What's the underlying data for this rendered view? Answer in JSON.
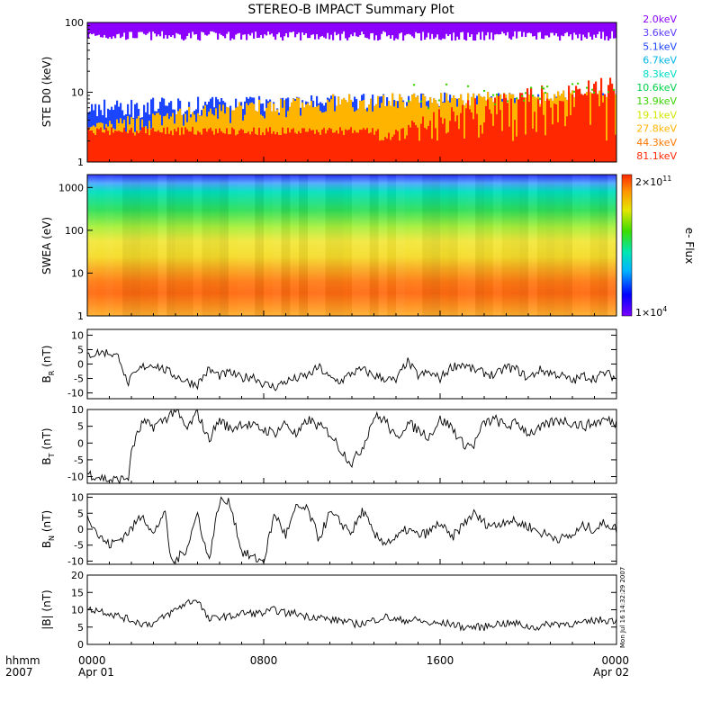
{
  "chart_data": {
    "type": "line",
    "title": "STEREO-B IMPACT Summary Plot",
    "time_axis": {
      "label_row1": "hhmm",
      "label_row2": "2007",
      "ticks": [
        {
          "hour": 0,
          "label": "0000",
          "date": "Apr 01"
        },
        {
          "hour": 8,
          "label": "0800",
          "date": ""
        },
        {
          "hour": 16,
          "label": "1600",
          "date": ""
        },
        {
          "hour": 24,
          "label": "0000",
          "date": "Apr 02"
        }
      ],
      "range_hours": [
        0,
        24
      ]
    },
    "side_text": "Mon Jul 16 14:32:29 2007",
    "ste": {
      "ylabel": "STE D0 (keV)",
      "scale": "log",
      "ylim": [
        1,
        100
      ],
      "yticks": [
        "1",
        "10",
        "100"
      ],
      "channels": [
        {
          "name": "2.0keV",
          "color": "#8b00ff"
        },
        {
          "name": "3.6keV",
          "color": "#5a3dff"
        },
        {
          "name": "5.1keV",
          "color": "#1c45ff"
        },
        {
          "name": "6.7keV",
          "color": "#00b4e6"
        },
        {
          "name": "8.3keV",
          "color": "#00dcc8"
        },
        {
          "name": "10.6keV",
          "color": "#00d24b"
        },
        {
          "name": "13.9keV",
          "color": "#3cd200"
        },
        {
          "name": "19.1keV",
          "color": "#d2e600"
        },
        {
          "name": "27.8keV",
          "color": "#ffb400"
        },
        {
          "name": "44.3keV",
          "color": "#ff7800"
        },
        {
          "name": "81.1keV",
          "color": "#ff2800"
        }
      ]
    },
    "swea": {
      "ylabel": "SWEA (eV)",
      "scale": "log",
      "ylim": [
        1,
        2000
      ],
      "yticks": [
        "1",
        "10",
        "100",
        "1000"
      ],
      "colorbar": {
        "label": "e- Flux",
        "max_base": "2×10",
        "max_exp": "11",
        "min_base": "1×10",
        "min_exp": "4"
      }
    },
    "field_panels": [
      {
        "key": "br",
        "ylabel_main": "B",
        "ylabel_sub": "R",
        "ylabel_unit": " (nT)",
        "ylim": [
          -12,
          12
        ],
        "yticks": [
          "-10",
          "-5",
          "0",
          "5",
          "10"
        ],
        "hours": [
          0,
          0.5,
          1,
          1.5,
          1.8,
          2,
          2.5,
          3,
          3.5,
          4,
          4.5,
          5,
          5.5,
          6,
          6.5,
          7,
          7.5,
          8,
          8.5,
          9,
          9.5,
          10,
          10.5,
          11,
          11.5,
          12,
          12.5,
          13,
          13.5,
          14,
          14.5,
          15,
          15.5,
          16,
          16.5,
          17,
          17.5,
          18,
          18.5,
          19,
          19.5,
          20,
          20.5,
          21,
          21.5,
          22,
          22.5,
          23,
          23.5,
          24
        ],
        "values": [
          3,
          4,
          4,
          2,
          -7,
          -5,
          -1,
          0,
          -2,
          -4,
          -6,
          -7,
          -2,
          -4,
          -3,
          -5,
          -4,
          -7,
          -8,
          -6,
          -5,
          -4,
          -1,
          -5,
          -6,
          -3,
          -2,
          -4,
          -5,
          -6,
          1,
          -4,
          -3,
          -5,
          -1,
          0,
          -2,
          -3,
          -4,
          -1,
          -2,
          -5,
          -2,
          -3,
          -4,
          -6,
          -4,
          -5,
          -3,
          -5
        ]
      },
      {
        "key": "bt",
        "ylabel_main": "B",
        "ylabel_sub": "T",
        "ylabel_unit": " (nT)",
        "ylim": [
          -12,
          10
        ],
        "yticks": [
          "-10",
          "-5",
          "0",
          "5",
          "10"
        ],
        "hours": [
          0,
          0.5,
          1,
          1.5,
          1.9,
          2,
          2.5,
          3,
          3.5,
          4,
          4.5,
          5,
          5.5,
          6,
          6.5,
          7,
          7.5,
          8,
          8.5,
          9,
          9.5,
          10,
          10.5,
          11,
          11.5,
          12,
          12.5,
          13,
          13.5,
          14,
          14.5,
          15,
          15.5,
          16,
          16.5,
          17,
          17.5,
          18,
          18.5,
          19,
          19.5,
          20,
          20.5,
          21,
          21.5,
          22,
          22.5,
          23,
          23.5,
          24
        ],
        "values": [
          -9,
          -10,
          -11,
          -11,
          -10,
          -2,
          6,
          5,
          7,
          10,
          4,
          9,
          1,
          7,
          4,
          6,
          5,
          4,
          3,
          6,
          2,
          7,
          5,
          3,
          -2,
          -6,
          -1,
          8,
          7,
          1,
          6,
          4,
          2,
          7,
          5,
          0,
          -1,
          6,
          7,
          5,
          6,
          3,
          4,
          6,
          7,
          6,
          5,
          6,
          7,
          6
        ]
      },
      {
        "key": "bn",
        "ylabel_main": "B",
        "ylabel_sub": "N",
        "ylabel_unit": " (nT)",
        "ylim": [
          -11,
          11
        ],
        "yticks": [
          "-10",
          "-5",
          "0",
          "5",
          "10"
        ],
        "hours": [
          0,
          0.5,
          1,
          1.5,
          2,
          2.5,
          3,
          3.5,
          3.8,
          4,
          4.5,
          5,
          5.5,
          6,
          6.5,
          7,
          7.5,
          8,
          8.5,
          9,
          9.5,
          10,
          10.5,
          11,
          11.5,
          12,
          12.5,
          13,
          13.5,
          14,
          14.5,
          15,
          15.5,
          16,
          16.5,
          17,
          17.5,
          18,
          18.5,
          19,
          19.5,
          20,
          20.5,
          21,
          21.5,
          22,
          22.5,
          23,
          23.5,
          24
        ],
        "values": [
          5,
          -2,
          -5,
          -3,
          0,
          5,
          -2,
          6,
          -10,
          -10,
          -6,
          5,
          -10,
          9,
          8,
          -7,
          -9,
          -10,
          5,
          -2,
          7,
          6,
          -3,
          5,
          2,
          -1,
          6,
          -2,
          -4,
          -3,
          0,
          -2,
          -1,
          2,
          -3,
          1,
          5,
          2,
          1,
          3,
          2,
          1,
          -1,
          -2,
          -3,
          -2,
          1,
          0,
          2,
          0
        ]
      },
      {
        "key": "bmag",
        "ylabel_main": "|B|",
        "ylabel_sub": "",
        "ylabel_unit": " (nT)",
        "ylim": [
          0,
          20
        ],
        "yticks": [
          "0",
          "5",
          "10",
          "15",
          "20"
        ],
        "hours": [
          0,
          0.5,
          1,
          1.5,
          2,
          2.5,
          3,
          3.5,
          4,
          4.5,
          5,
          5.5,
          6,
          6.5,
          7,
          7.5,
          8,
          8.5,
          9,
          9.5,
          10,
          10.5,
          11,
          11.5,
          12,
          12.5,
          13,
          13.5,
          14,
          14.5,
          15,
          15.5,
          16,
          16.5,
          17,
          17.5,
          18,
          18.5,
          19,
          19.5,
          20,
          20.5,
          21,
          21.5,
          22,
          22.5,
          23,
          23.5,
          24
        ],
        "values": [
          10,
          10,
          9,
          8,
          7,
          6,
          6,
          8,
          10,
          12,
          13,
          7,
          8,
          8,
          9,
          9,
          9,
          10,
          9,
          9,
          8,
          8,
          7,
          7,
          6,
          6,
          7,
          8,
          7,
          7,
          7,
          6,
          6,
          6,
          5,
          5,
          5,
          6,
          6,
          6,
          5,
          5,
          6,
          6,
          6,
          6,
          7,
          7,
          7
        ]
      }
    ]
  }
}
